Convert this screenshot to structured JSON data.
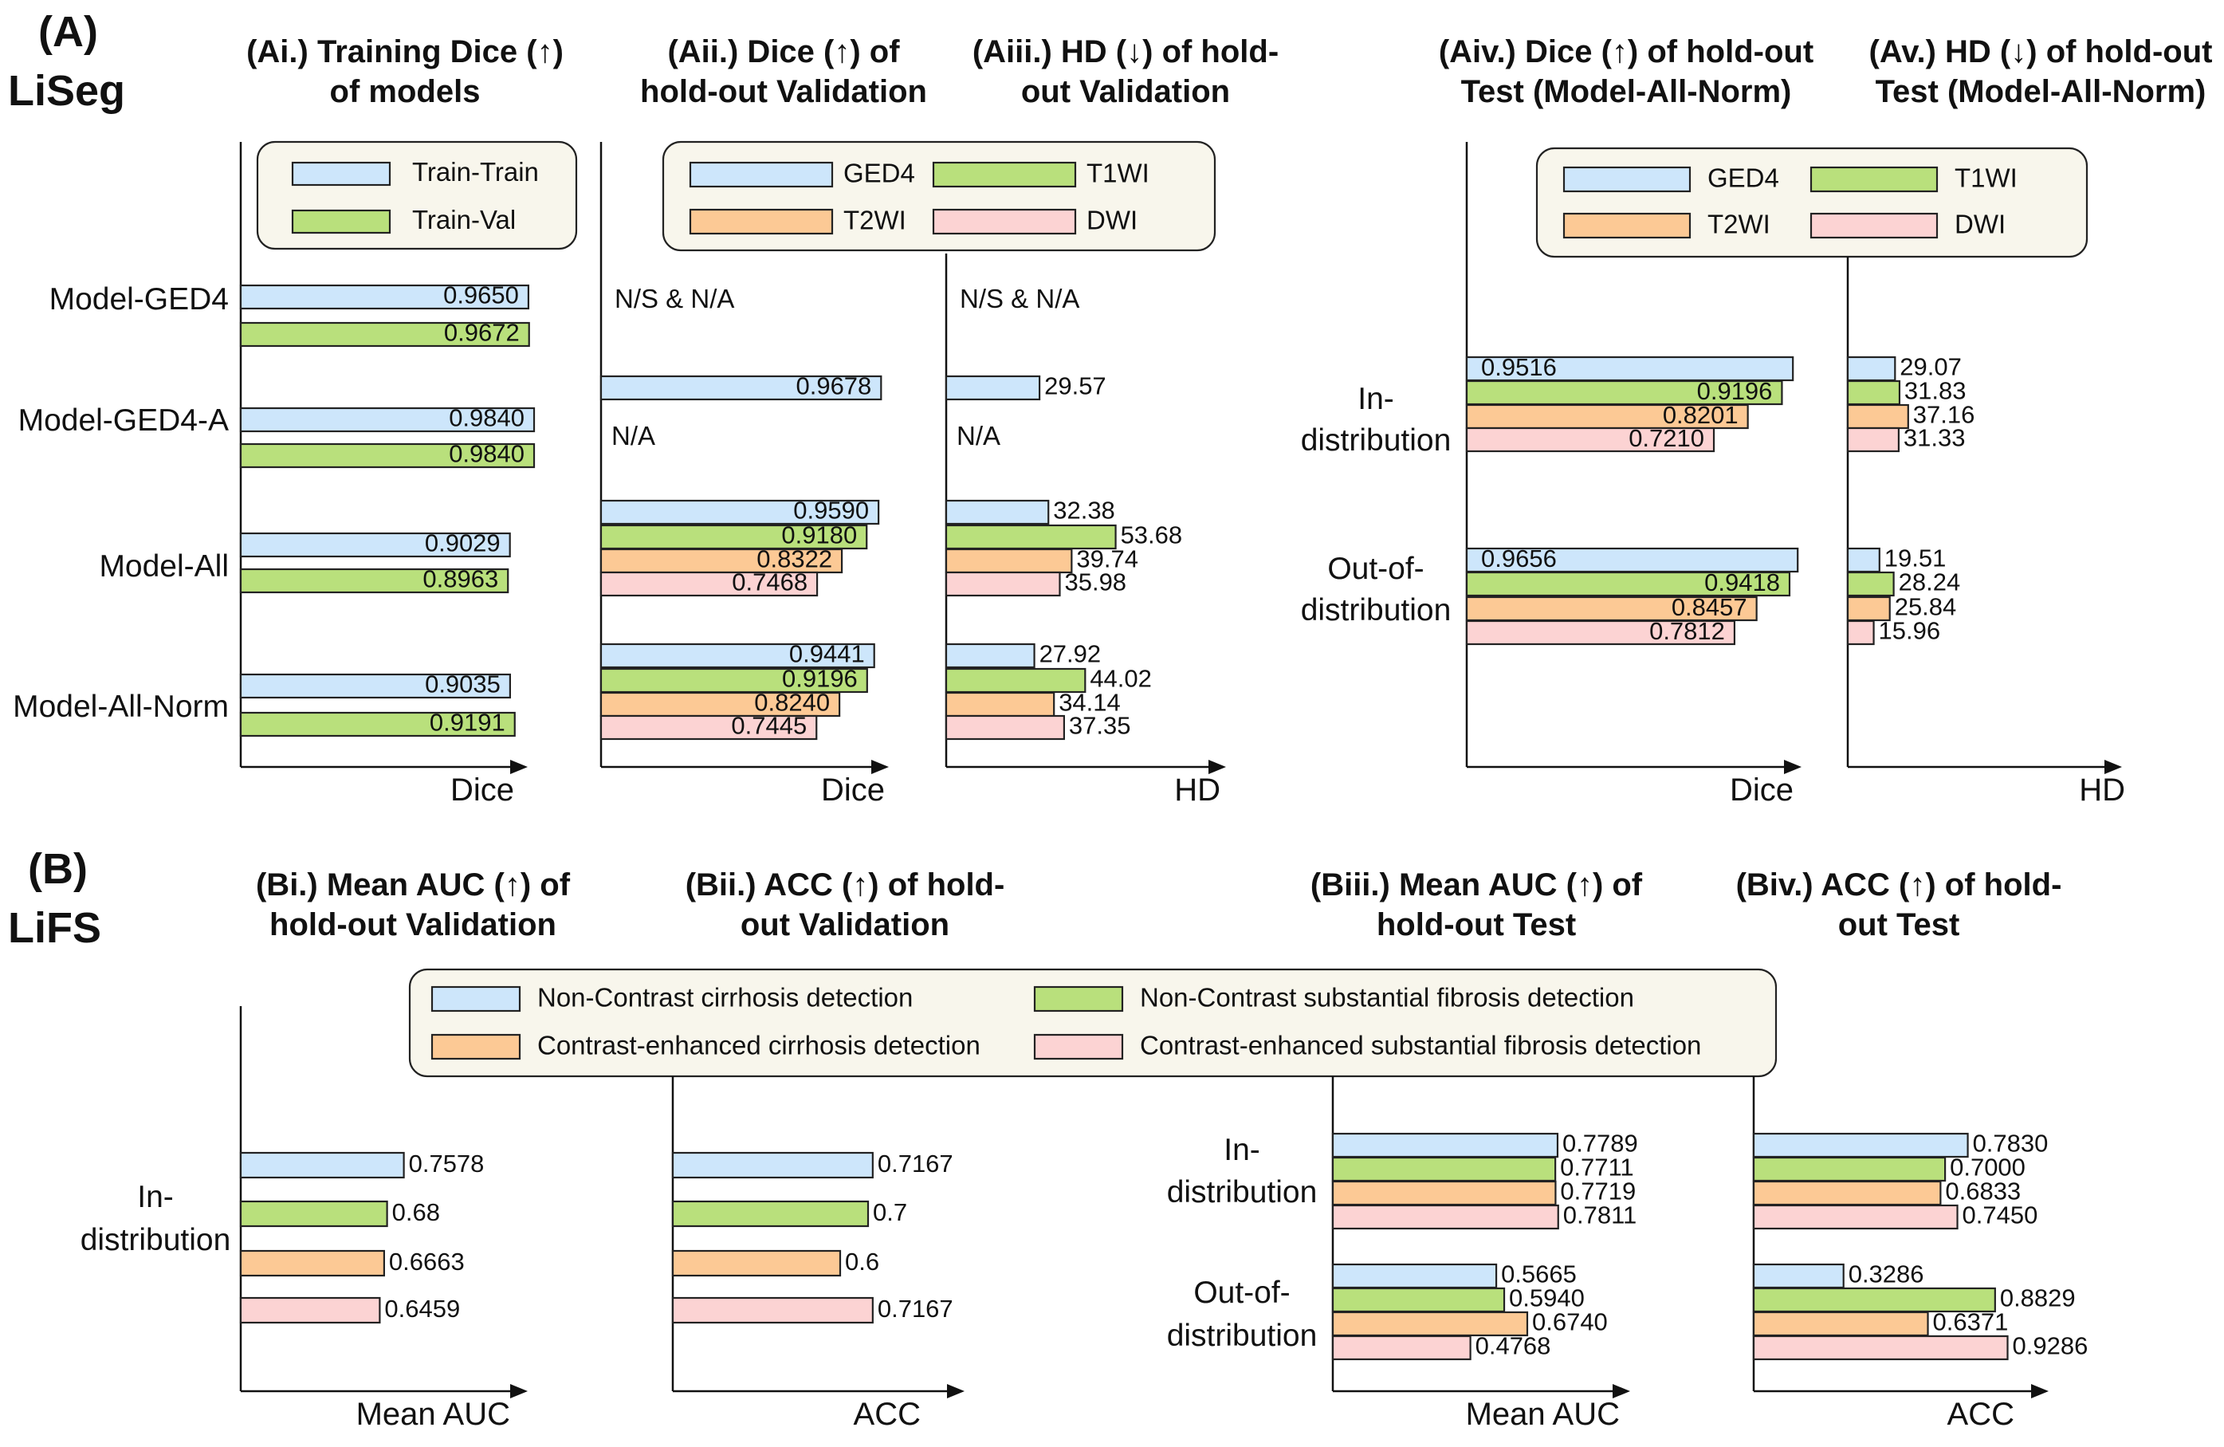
{
  "colors": {
    "blue": "#cde6fb",
    "green": "#b9e07c",
    "orange": "#fcc995",
    "pink": "#fcd3d3",
    "legend_bg": "#f8f6ec"
  },
  "sections": {
    "A": {
      "tag": "(A)",
      "name": "LiSeg"
    },
    "B": {
      "tag": "(B)",
      "name": "LiFS"
    }
  },
  "chart_data": [
    {
      "id": "Ai",
      "type": "bar",
      "orientation": "horizontal",
      "title": [
        "(Ai.) Training Dice (↑)",
        "of models"
      ],
      "xlabel": "Dice",
      "xlim": [
        0,
        1.05
      ],
      "legend": [
        {
          "name": "Train-Train",
          "color": "blue"
        },
        {
          "name": "Train-Val",
          "color": "green"
        }
      ],
      "legend_position": "top",
      "categories": [
        "Model-GED4",
        "Model-GED4-A",
        "Model-All",
        "Model-All-Norm"
      ],
      "series": [
        {
          "name": "Train-Train",
          "color": "blue",
          "values": [
            0.965,
            0.984,
            0.9029,
            0.9035
          ],
          "labels": [
            "0.9650",
            "0.9840",
            "0.9029",
            "0.9035"
          ]
        },
        {
          "name": "Train-Val",
          "color": "green",
          "values": [
            0.9672,
            0.984,
            0.8963,
            0.9191
          ],
          "labels": [
            "0.9672",
            "0.9840",
            "0.8963",
            "0.9191"
          ]
        }
      ]
    },
    {
      "id": "Aii",
      "type": "bar",
      "orientation": "horizontal",
      "title": [
        "(Aii.) Dice (↑) of",
        "hold-out Validation"
      ],
      "xlabel": "Dice",
      "xlim": [
        0,
        1.05
      ],
      "legend": [
        {
          "name": "GED4",
          "color": "blue"
        },
        {
          "name": "T1WI",
          "color": "green"
        },
        {
          "name": "T2WI",
          "color": "orange"
        },
        {
          "name": "DWI",
          "color": "pink"
        }
      ],
      "legend_position": "top",
      "categories": [
        "Model-GED4",
        "Model-GED4-A",
        "Model-All",
        "Model-All-Norm"
      ],
      "notes": [
        "N/S & N/A",
        "N/A"
      ],
      "series": [
        {
          "name": "GED4",
          "color": "blue",
          "values": [
            null,
            0.9678,
            0.959,
            0.9441
          ],
          "labels": [
            "",
            "0.9678",
            "0.9590",
            "0.9441"
          ]
        },
        {
          "name": "T1WI",
          "color": "green",
          "values": [
            null,
            null,
            0.918,
            0.9196
          ],
          "labels": [
            "",
            "",
            "0.9180",
            "0.9196"
          ]
        },
        {
          "name": "T2WI",
          "color": "orange",
          "values": [
            null,
            null,
            0.8322,
            0.824
          ],
          "labels": [
            "",
            "",
            "0.8322",
            "0.8240"
          ]
        },
        {
          "name": "DWI",
          "color": "pink",
          "values": [
            null,
            null,
            0.7468,
            0.7445
          ],
          "labels": [
            "",
            "",
            "0.7468",
            "0.7445"
          ]
        }
      ]
    },
    {
      "id": "Aiii",
      "type": "bar",
      "orientation": "horizontal",
      "title": [
        "(Aiii.) HD (↓) of hold-",
        "out Validation"
      ],
      "xlabel": "HD",
      "xlim": [
        0,
        75
      ],
      "categories": [
        "Model-GED4",
        "Model-GED4-A",
        "Model-All",
        "Model-All-Norm"
      ],
      "notes": [
        "N/S & N/A",
        "N/A"
      ],
      "series": [
        {
          "name": "GED4",
          "color": "blue",
          "values": [
            null,
            29.57,
            32.38,
            27.92
          ],
          "labels": [
            "",
            "29.57",
            "32.38",
            "27.92"
          ]
        },
        {
          "name": "T1WI",
          "color": "green",
          "values": [
            null,
            null,
            53.68,
            44.02
          ],
          "labels": [
            "",
            "",
            "53.68",
            "44.02"
          ]
        },
        {
          "name": "T2WI",
          "color": "orange",
          "values": [
            null,
            null,
            39.74,
            34.14
          ],
          "labels": [
            "",
            "",
            "39.74",
            "34.14"
          ]
        },
        {
          "name": "DWI",
          "color": "pink",
          "values": [
            null,
            null,
            35.98,
            37.35
          ],
          "labels": [
            "",
            "",
            "35.98",
            "37.35"
          ]
        }
      ]
    },
    {
      "id": "Aiv",
      "type": "bar",
      "orientation": "horizontal",
      "title": [
        "(Aiv.) Dice (↑) of hold-out",
        "Test (Model-All-Norm)"
      ],
      "xlabel": "Dice",
      "xlim": [
        0,
        1.05
      ],
      "legend": [
        {
          "name": "GED4",
          "color": "blue"
        },
        {
          "name": "T1WI",
          "color": "green"
        },
        {
          "name": "T2WI",
          "color": "orange"
        },
        {
          "name": "DWI",
          "color": "pink"
        }
      ],
      "legend_position": "top",
      "categories": [
        [
          "In-",
          "distribution"
        ],
        [
          "Out-of-",
          "distribution"
        ]
      ],
      "series": [
        {
          "name": "GED4",
          "color": "blue",
          "values": [
            0.9516,
            0.9656
          ],
          "labels": [
            "0.9516",
            "0.9656"
          ]
        },
        {
          "name": "T1WI",
          "color": "green",
          "values": [
            0.9196,
            0.9418
          ],
          "labels": [
            "0.9196",
            "0.9418"
          ]
        },
        {
          "name": "T2WI",
          "color": "orange",
          "values": [
            0.8201,
            0.8457
          ],
          "labels": [
            "0.8201",
            "0.8457"
          ]
        },
        {
          "name": "DWI",
          "color": "pink",
          "values": [
            0.721,
            0.7812
          ],
          "labels": [
            "0.7210",
            "0.7812"
          ]
        }
      ]
    },
    {
      "id": "Av",
      "type": "bar",
      "orientation": "horizontal",
      "title": [
        "(Av.) HD (↓) of hold-out",
        "Test (Model-All-Norm)"
      ],
      "xlabel": "HD",
      "xlim": [
        0,
        75
      ],
      "categories": [
        [
          "In-",
          "distribution"
        ],
        [
          "Out-of-",
          "distribution"
        ]
      ],
      "series": [
        {
          "name": "GED4",
          "color": "blue",
          "values": [
            29.07,
            19.51
          ],
          "labels": [
            "29.07",
            "19.51"
          ]
        },
        {
          "name": "T1WI",
          "color": "green",
          "values": [
            31.83,
            28.24
          ],
          "labels": [
            "31.83",
            "28.24"
          ]
        },
        {
          "name": "T2WI",
          "color": "orange",
          "values": [
            37.16,
            25.84
          ],
          "labels": [
            "37.16",
            "25.84"
          ]
        },
        {
          "name": "DWI",
          "color": "pink",
          "values": [
            31.33,
            15.96
          ],
          "labels": [
            "31.33",
            "15.96"
          ]
        }
      ]
    },
    {
      "id": "Bi",
      "type": "bar",
      "orientation": "horizontal",
      "title": [
        "(Bi.) Mean AUC (↑) of",
        "hold-out Validation"
      ],
      "xlabel": "Mean AUC",
      "xlim": [
        0,
        1.0
      ],
      "legend": [
        {
          "name": "Non-Contrast cirrhosis detection",
          "color": "blue"
        },
        {
          "name": "Non-Contrast substantial fibrosis detection",
          "color": "green"
        },
        {
          "name": "Contrast-enhanced cirrhosis detection",
          "color": "orange"
        },
        {
          "name": "Contrast-enhanced substantial fibrosis detection",
          "color": "pink"
        }
      ],
      "legend_position": "top",
      "categories": [
        [
          "In-",
          "distribution"
        ]
      ],
      "series": [
        {
          "name": "Non-Contrast cirrhosis detection",
          "color": "blue",
          "values": [
            0.7578
          ],
          "labels": [
            "0.7578"
          ]
        },
        {
          "name": "Non-Contrast substantial fibrosis detection",
          "color": "green",
          "values": [
            0.68
          ],
          "labels": [
            "0.68"
          ]
        },
        {
          "name": "Contrast-enhanced cirrhosis detection",
          "color": "orange",
          "values": [
            0.6663
          ],
          "labels": [
            "0.6663"
          ]
        },
        {
          "name": "Contrast-enhanced substantial fibrosis detection",
          "color": "pink",
          "values": [
            0.6459
          ],
          "labels": [
            "0.6459"
          ]
        }
      ]
    },
    {
      "id": "Bii",
      "type": "bar",
      "orientation": "horizontal",
      "title": [
        "(Bii.) ACC (↑) of hold-",
        "out Validation"
      ],
      "xlabel": "ACC",
      "xlim": [
        0,
        1.0
      ],
      "categories": [
        [
          "In-",
          "distribution"
        ]
      ],
      "series": [
        {
          "name": "Non-Contrast cirrhosis detection",
          "color": "blue",
          "values": [
            0.7167
          ],
          "labels": [
            "0.7167"
          ]
        },
        {
          "name": "Non-Contrast substantial fibrosis detection",
          "color": "green",
          "values": [
            0.7
          ],
          "labels": [
            "0.7"
          ]
        },
        {
          "name": "Contrast-enhanced cirrhosis detection",
          "color": "orange",
          "values": [
            0.6
          ],
          "labels": [
            "0.6"
          ]
        },
        {
          "name": "Contrast-enhanced substantial fibrosis detection",
          "color": "pink",
          "values": [
            0.7167
          ],
          "labels": [
            "0.7167"
          ]
        }
      ]
    },
    {
      "id": "Biii",
      "type": "bar",
      "orientation": "horizontal",
      "title": [
        "(Biii.) Mean AUC (↑) of",
        "hold-out Test"
      ],
      "xlabel": "Mean AUC",
      "xlim": [
        0,
        1.0
      ],
      "categories": [
        [
          "In-",
          "distribution"
        ],
        [
          "Out-of-",
          "distribution"
        ]
      ],
      "series": [
        {
          "name": "Non-Contrast cirrhosis detection",
          "color": "blue",
          "values": [
            0.7789,
            0.5665
          ],
          "labels": [
            "0.7789",
            "0.5665"
          ]
        },
        {
          "name": "Non-Contrast substantial fibrosis detection",
          "color": "green",
          "values": [
            0.7711,
            0.594
          ],
          "labels": [
            "0.7711",
            "0.5940"
          ]
        },
        {
          "name": "Contrast-enhanced cirrhosis detection",
          "color": "orange",
          "values": [
            0.7719,
            0.674
          ],
          "labels": [
            "0.7719",
            "0.6740"
          ]
        },
        {
          "name": "Contrast-enhanced substantial fibrosis detection",
          "color": "pink",
          "values": [
            0.7811,
            0.4768
          ],
          "labels": [
            "0.7811",
            "0.4768"
          ]
        }
      ]
    },
    {
      "id": "Biv",
      "type": "bar",
      "orientation": "horizontal",
      "title": [
        "(Biv.) ACC (↑) of hold-",
        "out Test"
      ],
      "xlabel": "ACC",
      "xlim": [
        0,
        1.0
      ],
      "categories": [
        [
          "In-",
          "distribution"
        ],
        [
          "Out-of-",
          "distribution"
        ]
      ],
      "series": [
        {
          "name": "Non-Contrast cirrhosis detection",
          "color": "blue",
          "values": [
            0.783,
            0.3286
          ],
          "labels": [
            "0.7830",
            "0.3286"
          ]
        },
        {
          "name": "Non-Contrast substantial fibrosis detection",
          "color": "green",
          "values": [
            0.7,
            0.8829
          ],
          "labels": [
            "0.7000",
            "0.8829"
          ]
        },
        {
          "name": "Contrast-enhanced cirrhosis detection",
          "color": "orange",
          "values": [
            0.6833,
            0.6371
          ],
          "labels": [
            "0.6833",
            "0.6371"
          ]
        },
        {
          "name": "Contrast-enhanced substantial fibrosis detection",
          "color": "pink",
          "values": [
            0.745,
            0.9286
          ],
          "labels": [
            "0.7450",
            "0.9286"
          ]
        }
      ]
    }
  ]
}
